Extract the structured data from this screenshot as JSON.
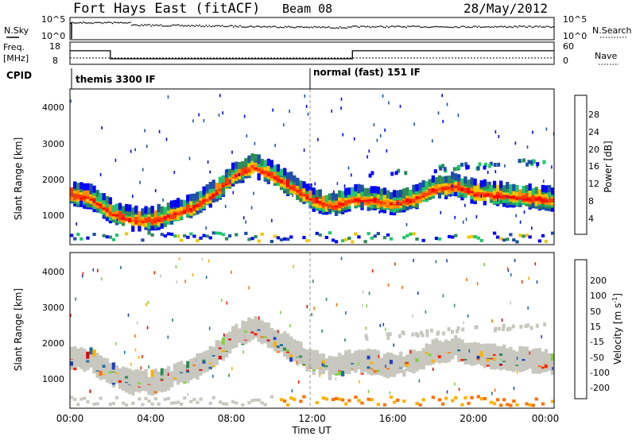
{
  "header": {
    "site": "Fort Hays East (fitACF)",
    "beam": "Beam 08",
    "date": "28/May/2012"
  },
  "noise_panel": {
    "left_label": "N.Sky",
    "left_ticks": [
      "10^5",
      "10^0"
    ],
    "right_label": "N.Search",
    "right_ticks": [
      "10^5",
      "10^0"
    ]
  },
  "freq_panel": {
    "left_label_line1": "Freq.",
    "left_label_line2": "[MHz]",
    "left_ticks": [
      "18",
      "8"
    ],
    "right_label": "Nave",
    "right_ticks": [
      "60",
      "0"
    ]
  },
  "cpid_panel": {
    "label": "CPID",
    "modes": [
      "themis 3300 IF",
      "normal (fast) 151 IF"
    ]
  },
  "power_panel": {
    "ylabel": "Slant Range [km]",
    "yticks": [
      "4000",
      "3000",
      "2000",
      "1000"
    ],
    "colorbar_label": "Power [dB]",
    "colorbar_ticks": [
      "28",
      "24",
      "20",
      "16",
      "12",
      "8",
      "4"
    ],
    "colors": [
      "#0000ff",
      "#1f4fa8",
      "#2e8b57",
      "#22c56e",
      "#f0c800",
      "#ff8c00",
      "#ff3a00",
      "#ff0000"
    ]
  },
  "velocity_panel": {
    "ylabel": "Slant Range [km]",
    "yticks": [
      "4000",
      "3000",
      "2000",
      "1000"
    ],
    "colorbar_label": "Velocity [m s",
    "colorbar_label_sup": "-1",
    "colorbar_label_end": "]",
    "colorbar_ticks": [
      "200",
      "100",
      "50",
      "15",
      "-15",
      "-50",
      "-100",
      "-200"
    ],
    "colors": [
      "#1f3fbf",
      "#1f6f9f",
      "#2e8b57",
      "#7fd13b",
      "#c8c8c0",
      "#ffb000",
      "#ff7000",
      "#ff2000",
      "#e00000"
    ]
  },
  "xaxis": {
    "label": "Time UT",
    "ticks": [
      "00:00",
      "04:00",
      "08:00",
      "12:00",
      "16:00",
      "20:00",
      "00:00"
    ]
  },
  "chart_data": {
    "type": "heatmap",
    "x_range_hours": [
      0,
      24
    ],
    "y_range_km": [
      180,
      4500
    ],
    "mode_change_hours": [
      0.0,
      14.0
    ],
    "frequency_mhz": {
      "times_h": [
        0,
        2,
        2,
        14,
        14,
        24
      ],
      "values": [
        14.7,
        14.7,
        9.9,
        9.9,
        14.7,
        14.7
      ]
    },
    "echo_band_center_km": {
      "times_h": [
        0,
        1,
        2,
        3,
        4,
        5,
        6,
        7,
        8,
        9,
        10,
        11,
        12,
        13,
        14,
        15,
        16,
        17,
        18,
        19,
        20,
        21,
        22,
        23,
        24
      ],
      "values": [
        1700,
        1600,
        1200,
        1000,
        1000,
        1150,
        1350,
        1700,
        2200,
        2500,
        2250,
        1900,
        1550,
        1400,
        1600,
        1550,
        1450,
        1600,
        1850,
        1950,
        1750,
        1700,
        1650,
        1600,
        1550
      ]
    }
  }
}
